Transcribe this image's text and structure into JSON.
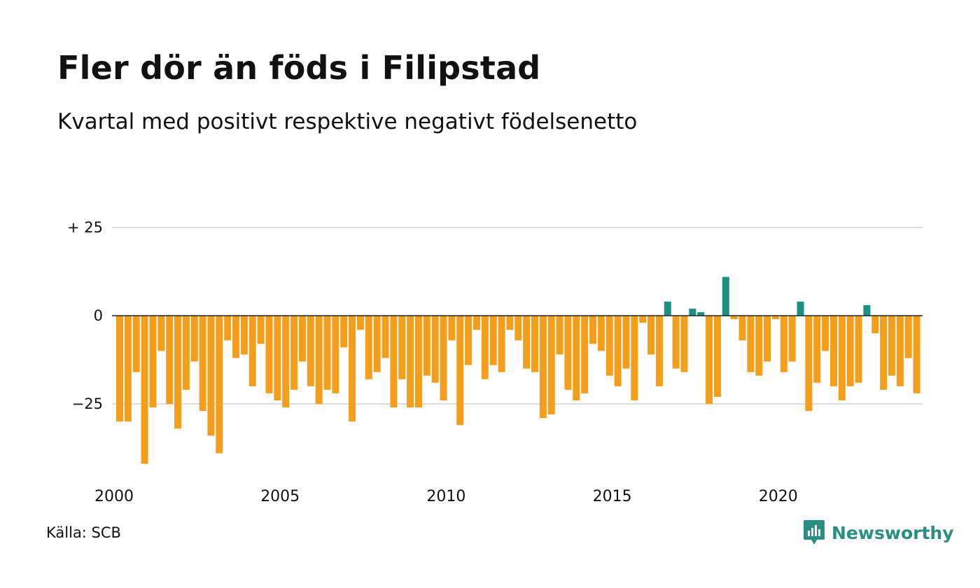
{
  "header": {
    "title": "Fler dör än föds i Filipstad",
    "subtitle": "Kvartal med positivt respektive negativt födelsenetto"
  },
  "footer": {
    "source": "Källa: SCB",
    "brand": "Newsworthy"
  },
  "colors": {
    "negative": "#f59e1c",
    "positive": "#1a9080",
    "grid": "#dddddd",
    "axis": "#222222",
    "brand": "#2a8f82"
  },
  "chart_data": {
    "type": "bar",
    "x_start": "2000 Q1",
    "y_ticks": [
      {
        "value": 25,
        "label": "+ 25"
      },
      {
        "value": 0,
        "label": "0"
      },
      {
        "value": -25,
        "label": "−25"
      }
    ],
    "x_ticks": [
      "2000",
      "2005",
      "2010",
      "2015",
      "2020"
    ],
    "ylim": [
      -45,
      25
    ],
    "grid": true,
    "values": [
      -30,
      -30,
      -16,
      -42,
      -26,
      -10,
      -25,
      -32,
      -21,
      -13,
      -27,
      -34,
      -39,
      -7,
      -12,
      -11,
      -20,
      -8,
      -22,
      -24,
      -26,
      -21,
      -13,
      -20,
      -25,
      -21,
      -22,
      -9,
      -30,
      -4,
      -18,
      -16,
      -12,
      -26,
      -18,
      -26,
      -26,
      -17,
      -19,
      -24,
      -7,
      -31,
      -14,
      -4,
      -18,
      -14,
      -16,
      -4,
      -7,
      -15,
      -16,
      -29,
      -28,
      -11,
      -21,
      -24,
      -22,
      -8,
      -10,
      -17,
      -20,
      -15,
      -24,
      -2,
      -11,
      -20,
      4,
      -15,
      -16,
      2,
      1,
      -25,
      -23,
      11,
      -1,
      -7,
      -16,
      -17,
      -13,
      -1,
      -16,
      -13,
      4,
      -27,
      -19,
      -10,
      -20,
      -24,
      -20,
      -19,
      3,
      -5,
      -21,
      -17,
      -20,
      -12,
      -22
    ]
  }
}
